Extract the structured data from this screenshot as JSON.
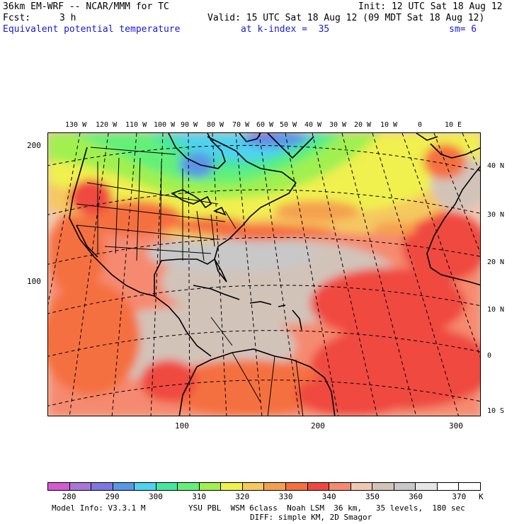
{
  "header": {
    "model_title": "36km EM-WRF -- NCAR/MMM for TC",
    "init": "Init: 12 UTC Sat 18 Aug 12",
    "fcst_label": "Fcst:",
    "fcst_value": "3 h",
    "valid": "Valid: 15 UTC Sat 18 Aug 12 (09 MDT Sat 18 Aug 12)",
    "field_name": "Equivalent potential temperature",
    "level": "at k-index =  35",
    "smoothing": "sm= 6"
  },
  "map": {
    "longitude_labels": [
      "130 W",
      "120 W",
      "110 W",
      "100 W",
      "90 W",
      "80 W",
      "70 W",
      "60 W",
      "50 W",
      "40 W",
      "30 W",
      "20 W",
      "10 W",
      "0",
      "10 E"
    ],
    "latitude_labels": [
      "40 N",
      "30 N",
      "20 N",
      "10 N",
      "0",
      "10 S"
    ],
    "grid_y_ticks": [
      "200",
      "100"
    ],
    "grid_x_ticks": [
      "100",
      "200",
      "300"
    ]
  },
  "colorbar": {
    "labels": [
      "280",
      "290",
      "300",
      "310",
      "320",
      "330",
      "340",
      "350",
      "360",
      "370"
    ],
    "unit": "K",
    "colors": [
      "#d45ad4",
      "#a878d8",
      "#7c78e0",
      "#5a96e6",
      "#50d2f0",
      "#46e6a0",
      "#64f078",
      "#a0f050",
      "#f0f050",
      "#f5c860",
      "#f5a050",
      "#f57040",
      "#f04840",
      "#f58a70",
      "#f0c8b0",
      "#d2c3b9",
      "#c8c8c8",
      "#e6e6e6",
      "#ffffff",
      "#ffffff"
    ]
  },
  "footer": {
    "model_info": "Model Info: V3.3.1 M",
    "physics_line1": "YSU PBL  WSM 6class  Noah LSM  36 km,   35 levels,  180 sec",
    "physics_line2": "DIFF: simple KM, 2D Smagor"
  }
}
